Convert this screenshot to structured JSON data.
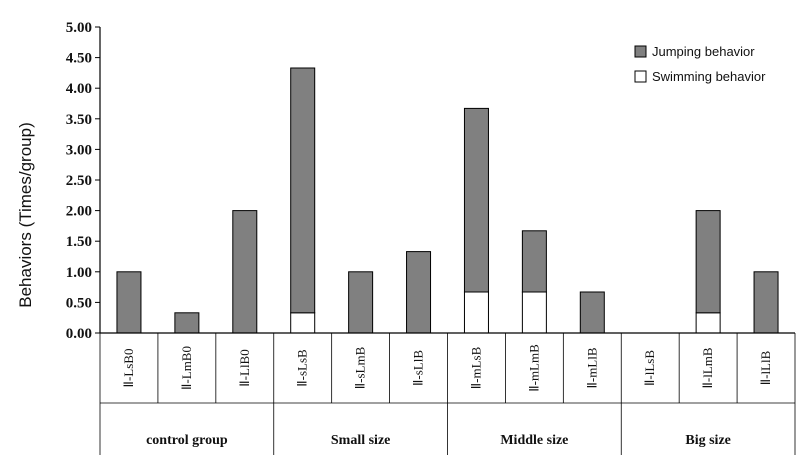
{
  "chart_data": {
    "type": "bar",
    "stacked": true,
    "ylabel": "Behaviors  (Times/group)",
    "ylim": [
      0,
      5
    ],
    "ytick_labels": [
      "0.00",
      "0.50",
      "1.00",
      "1.50",
      "2.00",
      "2.50",
      "3.00",
      "3.50",
      "4.00",
      "4.50",
      "5.00"
    ],
    "grid": false,
    "legend_position": "top-right",
    "categories": [
      "Ⅱ-LsB0",
      "Ⅱ-LmB0",
      "Ⅱ-LlB0",
      "Ⅱ-sLsB",
      "Ⅱ-sLmB",
      "Ⅱ-sLlB",
      "Ⅱ-mLsB",
      "Ⅱ-mLmB",
      "Ⅱ-mLlB",
      "Ⅱ-lLsB",
      "Ⅱ-lLmB",
      "Ⅱ-lLlB"
    ],
    "groups": [
      {
        "label": "control group",
        "count": 3
      },
      {
        "label": "Small size",
        "count": 3
      },
      {
        "label": "Middle size",
        "count": 3
      },
      {
        "label": "Big size",
        "count": 3
      }
    ],
    "series": [
      {
        "name": "Swimming behavior",
        "color": "#ffffff",
        "values": [
          0,
          0,
          0,
          0.33,
          0,
          0,
          0.67,
          0.67,
          0,
          0,
          0.33,
          0
        ]
      },
      {
        "name": "Jumping behavior",
        "color": "#808080",
        "values": [
          1.0,
          0.33,
          2.0,
          4.0,
          1.0,
          1.33,
          3.0,
          1.0,
          0.67,
          0,
          1.67,
          1.0
        ]
      }
    ],
    "legend": [
      "Jumping behavior",
      "Swimming behavior"
    ]
  }
}
